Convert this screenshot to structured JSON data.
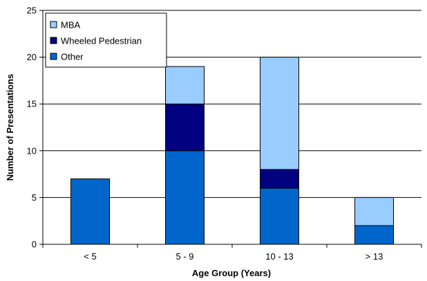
{
  "chart_data": {
    "type": "bar",
    "stacked": true,
    "categories": [
      "< 5",
      "5 - 9",
      "10 - 13",
      "> 13"
    ],
    "series": [
      {
        "name": "Other",
        "color": "#0066cc",
        "values": [
          7,
          10,
          6,
          2
        ]
      },
      {
        "name": "Wheeled Pedestrian",
        "color": "#000080",
        "values": [
          0,
          5,
          2,
          0
        ]
      },
      {
        "name": "MBA",
        "color": "#99ccff",
        "values": [
          0,
          4,
          12,
          3
        ]
      }
    ],
    "legend_order": [
      "MBA",
      "Wheeled Pedestrian",
      "Other"
    ],
    "xlabel": "Age Group (Years)",
    "ylabel": "Number of Presentations",
    "ylim": [
      0,
      25
    ],
    "yticks": [
      0,
      5,
      10,
      15,
      20,
      25
    ],
    "grid": true,
    "legend_position": "top-left"
  }
}
